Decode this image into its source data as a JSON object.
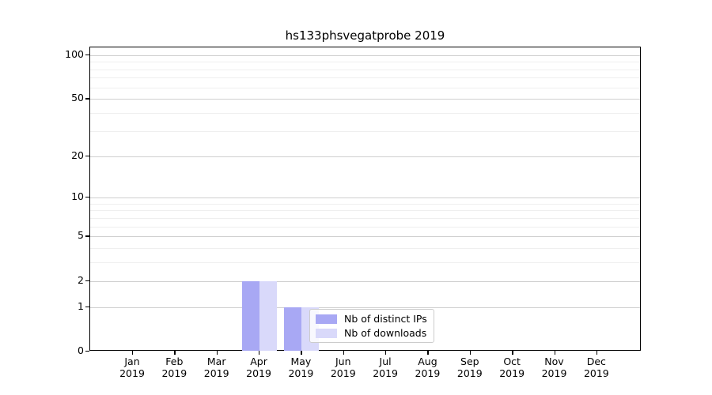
{
  "chart_data": {
    "type": "bar",
    "title": "hs133phsvegatprobe 2019",
    "categories": [
      "Jan",
      "Feb",
      "Mar",
      "Apr",
      "May",
      "Jun",
      "Jul",
      "Aug",
      "Sep",
      "Oct",
      "Nov",
      "Dec"
    ],
    "year_label": "2019",
    "series": [
      {
        "name": "Nb of distinct IPs",
        "color": "#a8a8f4",
        "values": [
          0,
          0,
          0,
          2,
          1,
          0,
          0,
          0,
          0,
          0,
          0,
          0
        ]
      },
      {
        "name": "Nb of downloads",
        "color": "#d9d9fa",
        "values": [
          0,
          0,
          0,
          2,
          1,
          0,
          0,
          0,
          0,
          0,
          0,
          0
        ]
      }
    ],
    "yscale": "log1p",
    "ylim": [
      0,
      113
    ],
    "y_major_ticks": [
      0,
      1,
      2,
      5,
      10,
      20,
      50,
      100
    ],
    "y_minor_ticks": [
      3,
      4,
      6,
      7,
      8,
      9,
      30,
      40,
      60,
      70,
      80,
      90
    ],
    "xlabel": "",
    "ylabel": "",
    "grid": true,
    "legend_position": "inside-bottom-center-right"
  },
  "colors": {
    "grid_major": "#cfcfcf",
    "grid_minor": "#efefef",
    "axis": "#000000",
    "legend_border": "#cccccc"
  }
}
